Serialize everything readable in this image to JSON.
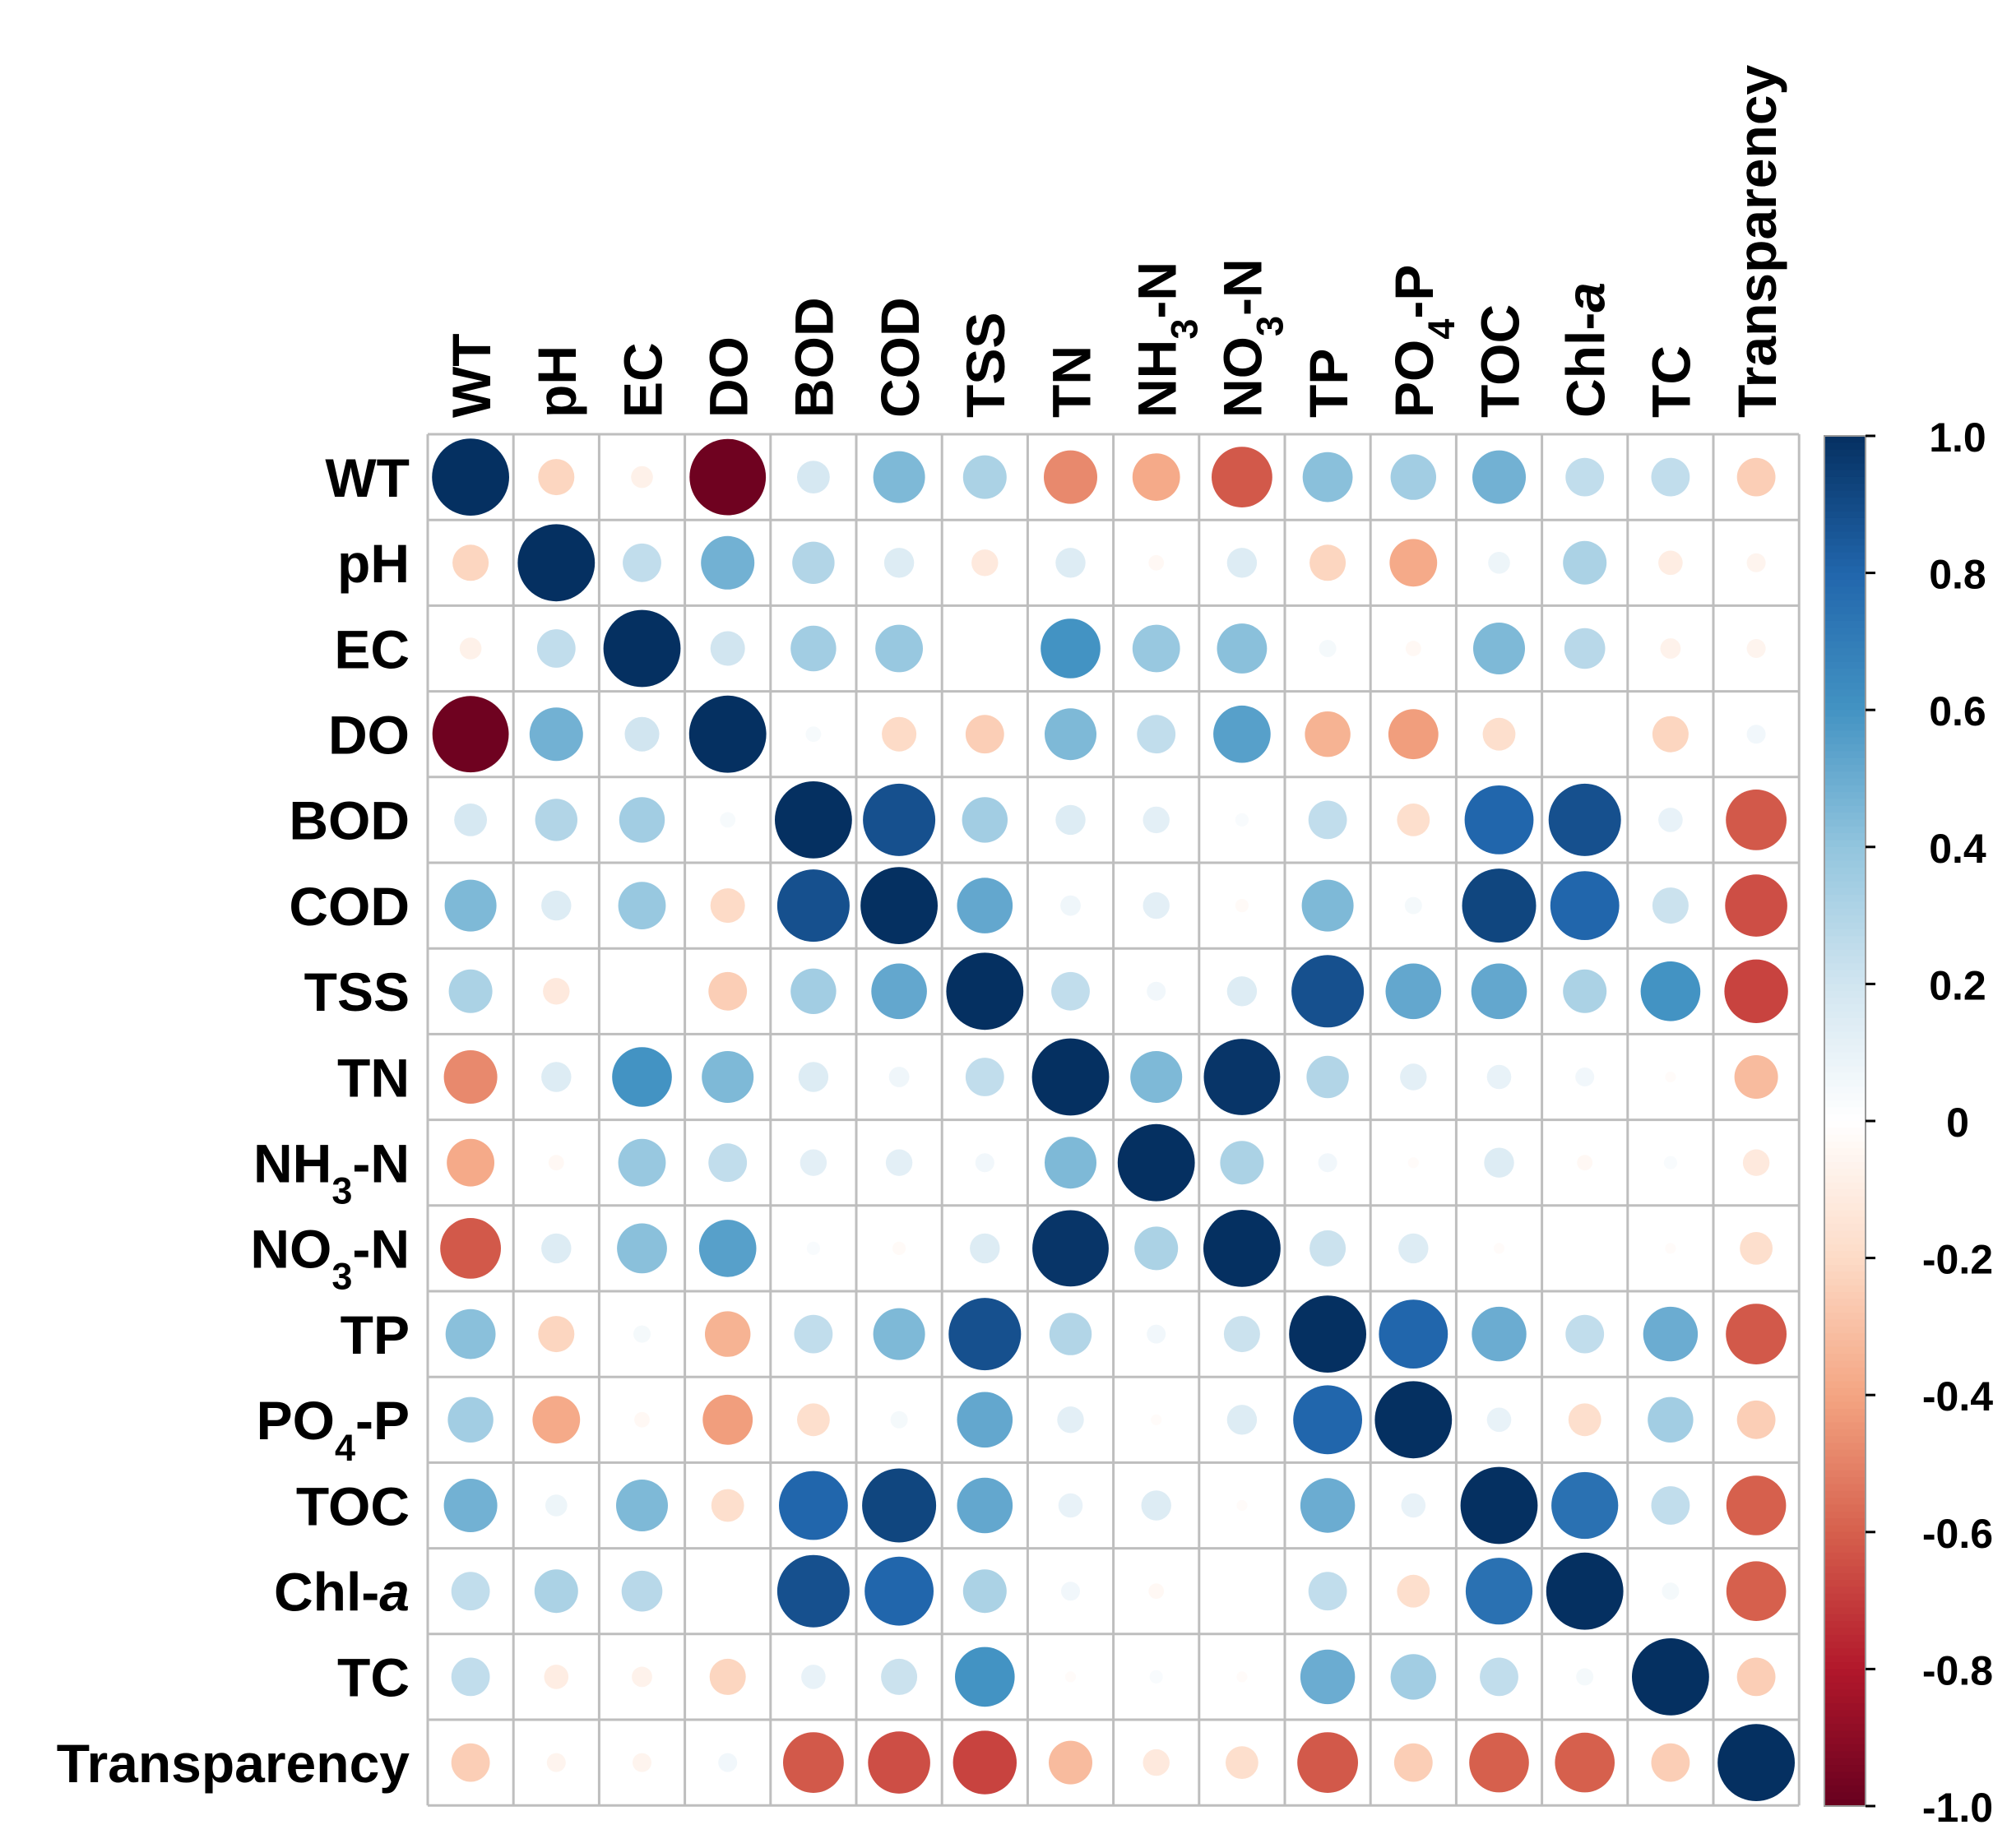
{
  "chart_data": {
    "type": "heatmap",
    "subtype": "correlation-circle-matrix",
    "title": "",
    "variables": [
      {
        "label": "WT"
      },
      {
        "label": "pH"
      },
      {
        "label": "EC"
      },
      {
        "label": "DO"
      },
      {
        "label": "BOD"
      },
      {
        "label": "COD"
      },
      {
        "label": "TSS"
      },
      {
        "label": "TN"
      },
      {
        "label": "NH",
        "sub": "3",
        "suffix": "-N"
      },
      {
        "label": "NO",
        "sub": "3",
        "suffix": "-N"
      },
      {
        "label": "TP"
      },
      {
        "label": "PO",
        "sub": "4",
        "suffix": "-P"
      },
      {
        "label": "TOC"
      },
      {
        "label": "Chl-",
        "italic": "a"
      },
      {
        "label": "TC"
      },
      {
        "label": "Transparency"
      }
    ],
    "matrix": [
      [
        1.0,
        -0.22,
        -0.08,
        -0.98,
        0.18,
        0.45,
        0.32,
        -0.48,
        -0.38,
        -0.62,
        0.42,
        0.35,
        0.48,
        0.25,
        0.25,
        -0.25
      ],
      [
        -0.22,
        1.0,
        0.25,
        0.48,
        0.3,
        0.15,
        -0.12,
        0.15,
        -0.04,
        0.15,
        -0.22,
        -0.38,
        0.08,
        0.32,
        -0.1,
        -0.06
      ],
      [
        -0.08,
        0.25,
        1.0,
        0.2,
        0.35,
        0.38,
        0.0,
        0.6,
        0.38,
        0.42,
        0.05,
        -0.04,
        0.45,
        0.28,
        -0.07,
        -0.06
      ],
      [
        -0.98,
        0.48,
        0.2,
        1.0,
        0.04,
        -0.2,
        -0.25,
        0.45,
        0.25,
        0.55,
        -0.35,
        -0.42,
        -0.18,
        0.0,
        -0.22,
        0.06
      ],
      [
        0.18,
        0.3,
        0.35,
        0.04,
        1.0,
        0.88,
        0.35,
        0.15,
        0.12,
        0.03,
        0.25,
        -0.18,
        0.8,
        0.88,
        0.1,
        -0.62
      ],
      [
        0.45,
        0.15,
        0.38,
        -0.2,
        0.88,
        1.0,
        0.52,
        0.07,
        0.12,
        -0.03,
        0.45,
        0.05,
        0.92,
        0.8,
        0.22,
        -0.65
      ],
      [
        0.32,
        -0.12,
        0.0,
        -0.25,
        0.35,
        0.52,
        1.0,
        0.25,
        0.06,
        0.15,
        0.88,
        0.52,
        0.52,
        0.32,
        0.6,
        -0.68
      ],
      [
        -0.48,
        0.15,
        0.6,
        0.45,
        0.15,
        0.07,
        0.25,
        1.0,
        0.45,
        0.98,
        0.3,
        0.12,
        0.1,
        0.06,
        -0.02,
        -0.32
      ],
      [
        -0.38,
        -0.04,
        0.38,
        0.25,
        0.12,
        0.12,
        0.06,
        0.45,
        1.0,
        0.32,
        0.06,
        -0.02,
        0.15,
        -0.04,
        0.03,
        -0.12
      ],
      [
        -0.62,
        0.15,
        0.42,
        0.55,
        0.03,
        -0.03,
        0.15,
        0.98,
        0.32,
        1.0,
        0.22,
        0.15,
        -0.02,
        0.0,
        -0.02,
        -0.18
      ],
      [
        0.42,
        -0.22,
        0.05,
        -0.35,
        0.25,
        0.45,
        0.88,
        0.3,
        0.06,
        0.22,
        1.0,
        0.8,
        0.5,
        0.25,
        0.5,
        -0.62
      ],
      [
        0.35,
        -0.38,
        -0.04,
        -0.42,
        -0.18,
        0.05,
        0.52,
        0.12,
        -0.02,
        0.15,
        0.8,
        1.0,
        0.1,
        -0.18,
        0.35,
        -0.25
      ],
      [
        0.48,
        0.08,
        0.45,
        -0.18,
        0.8,
        0.92,
        0.52,
        0.1,
        0.15,
        -0.02,
        0.5,
        0.1,
        1.0,
        0.75,
        0.25,
        -0.6
      ],
      [
        0.25,
        0.32,
        0.28,
        0.0,
        0.88,
        0.8,
        0.32,
        0.06,
        -0.04,
        0.0,
        0.25,
        -0.18,
        0.75,
        1.0,
        0.05,
        -0.6
      ],
      [
        0.25,
        -0.1,
        -0.07,
        -0.22,
        0.1,
        0.22,
        0.6,
        -0.02,
        0.03,
        -0.02,
        0.5,
        0.35,
        0.25,
        0.05,
        1.0,
        -0.25
      ],
      [
        -0.25,
        -0.06,
        -0.06,
        0.06,
        -0.62,
        -0.65,
        -0.68,
        -0.32,
        -0.12,
        -0.18,
        -0.62,
        -0.25,
        -0.6,
        -0.6,
        -0.25,
        1.0
      ]
    ],
    "value_range": [
      -1.0,
      1.0
    ],
    "colorbar": {
      "ticks": [
        "1.0",
        "0.8",
        "0.6",
        "0.4",
        "0.2",
        "0",
        "-0.2",
        "-0.4",
        "-0.6",
        "-0.8",
        "-1.0"
      ],
      "tick_values": [
        1.0,
        0.8,
        0.6,
        0.4,
        0.2,
        0.0,
        -0.2,
        -0.4,
        -0.6,
        -0.8,
        -1.0
      ],
      "placement": "right"
    },
    "colors": {
      "negative_strong": "#67001F",
      "neutral": "#FFFFFF",
      "positive_strong": "#053061",
      "grid": "#BEBEBE",
      "text": "#000000"
    }
  }
}
